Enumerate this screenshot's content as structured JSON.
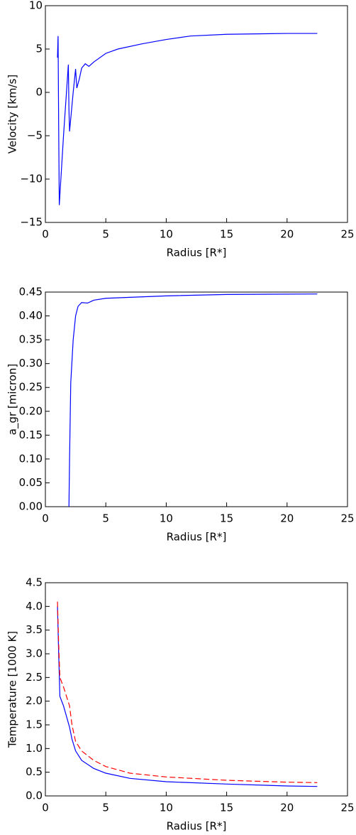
{
  "chart_data": [
    {
      "type": "line",
      "xlabel": "Radius [R*]",
      "ylabel": "Velocity [km/s]",
      "x": [
        1.0,
        1.05,
        1.1,
        1.15,
        1.5,
        1.9,
        1.95,
        2.0,
        2.3,
        2.5,
        2.6,
        2.8,
        3.0,
        3.3,
        3.6,
        4,
        5,
        6,
        8,
        10,
        12,
        15,
        20,
        22.5
      ],
      "series": [
        {
          "color": "#0000ff",
          "values": [
            4,
            6.5,
            -4,
            -13,
            -5,
            3.2,
            -2,
            -4.5,
            0,
            2.7,
            0.5,
            1.5,
            2.8,
            3.3,
            3.0,
            3.5,
            4.5,
            5.0,
            5.6,
            6.1,
            6.5,
            6.7,
            6.8,
            6.8
          ]
        }
      ],
      "xlim": [
        0,
        25
      ],
      "xticks": [
        0,
        5,
        10,
        15,
        20,
        25
      ],
      "ylim": [
        -15,
        10
      ],
      "yticks": [
        {
          "value": -15,
          "label": "−15"
        },
        {
          "value": -10,
          "label": "−10"
        },
        {
          "value": -5,
          "label": "−5"
        },
        0,
        5,
        10
      ]
    },
    {
      "type": "line",
      "xlabel": "Radius [R*]",
      "ylabel": "a_gr [micron]",
      "x": [
        1.95,
        2.0,
        2.1,
        2.3,
        2.5,
        2.7,
        3.0,
        3.5,
        4,
        5,
        7,
        10,
        15,
        22.5
      ],
      "series": [
        {
          "color": "#0000ff",
          "values": [
            0.0,
            0.1,
            0.26,
            0.35,
            0.4,
            0.42,
            0.428,
            0.427,
            0.433,
            0.437,
            0.439,
            0.442,
            0.445,
            0.446
          ]
        }
      ],
      "xlim": [
        0,
        25
      ],
      "xticks": [
        0,
        5,
        10,
        15,
        20,
        25
      ],
      "ylim": [
        0,
        0.45
      ],
      "yticks": [
        {
          "value": 0,
          "label": "0.00"
        },
        {
          "value": 0.05,
          "label": "0.05"
        },
        {
          "value": 0.1,
          "label": "0.10"
        },
        {
          "value": 0.15,
          "label": "0.15"
        },
        {
          "value": 0.2,
          "label": "0.20"
        },
        {
          "value": 0.25,
          "label": "0.25"
        },
        {
          "value": 0.3,
          "label": "0.30"
        },
        {
          "value": 0.35,
          "label": "0.35"
        },
        {
          "value": 0.4,
          "label": "0.40"
        },
        {
          "value": 0.45,
          "label": "0.45"
        }
      ]
    },
    {
      "type": "line",
      "xlabel": "Radius [R*]",
      "ylabel": "Temperature [1000 K]",
      "x": [
        1.0,
        1.1,
        1.2,
        1.5,
        2.0,
        2.2,
        2.5,
        3,
        4,
        5,
        7,
        10,
        15,
        20,
        22.5
      ],
      "series": [
        {
          "color": "#0000ff",
          "dash": false,
          "values": [
            4.0,
            3.0,
            2.1,
            1.9,
            1.45,
            1.2,
            0.95,
            0.75,
            0.58,
            0.48,
            0.37,
            0.3,
            0.25,
            0.21,
            0.2
          ]
        },
        {
          "color": "#ff0000",
          "dash": true,
          "values": [
            4.1,
            3.2,
            2.5,
            2.3,
            1.9,
            1.5,
            1.15,
            0.95,
            0.75,
            0.62,
            0.48,
            0.4,
            0.33,
            0.29,
            0.28
          ]
        }
      ],
      "xlim": [
        0,
        25
      ],
      "xticks": [
        0,
        5,
        10,
        15,
        20,
        25
      ],
      "ylim": [
        0,
        4.5
      ],
      "yticks": [
        {
          "value": 0,
          "label": "0.0"
        },
        {
          "value": 0.5,
          "label": "0.5"
        },
        {
          "value": 1,
          "label": "1.0"
        },
        {
          "value": 1.5,
          "label": "1.5"
        },
        {
          "value": 2,
          "label": "2.0"
        },
        {
          "value": 2.5,
          "label": "2.5"
        },
        {
          "value": 3,
          "label": "3.0"
        },
        {
          "value": 3.5,
          "label": "3.5"
        },
        {
          "value": 4,
          "label": "4.0"
        },
        {
          "value": 4.5,
          "label": "4.5"
        }
      ]
    }
  ]
}
